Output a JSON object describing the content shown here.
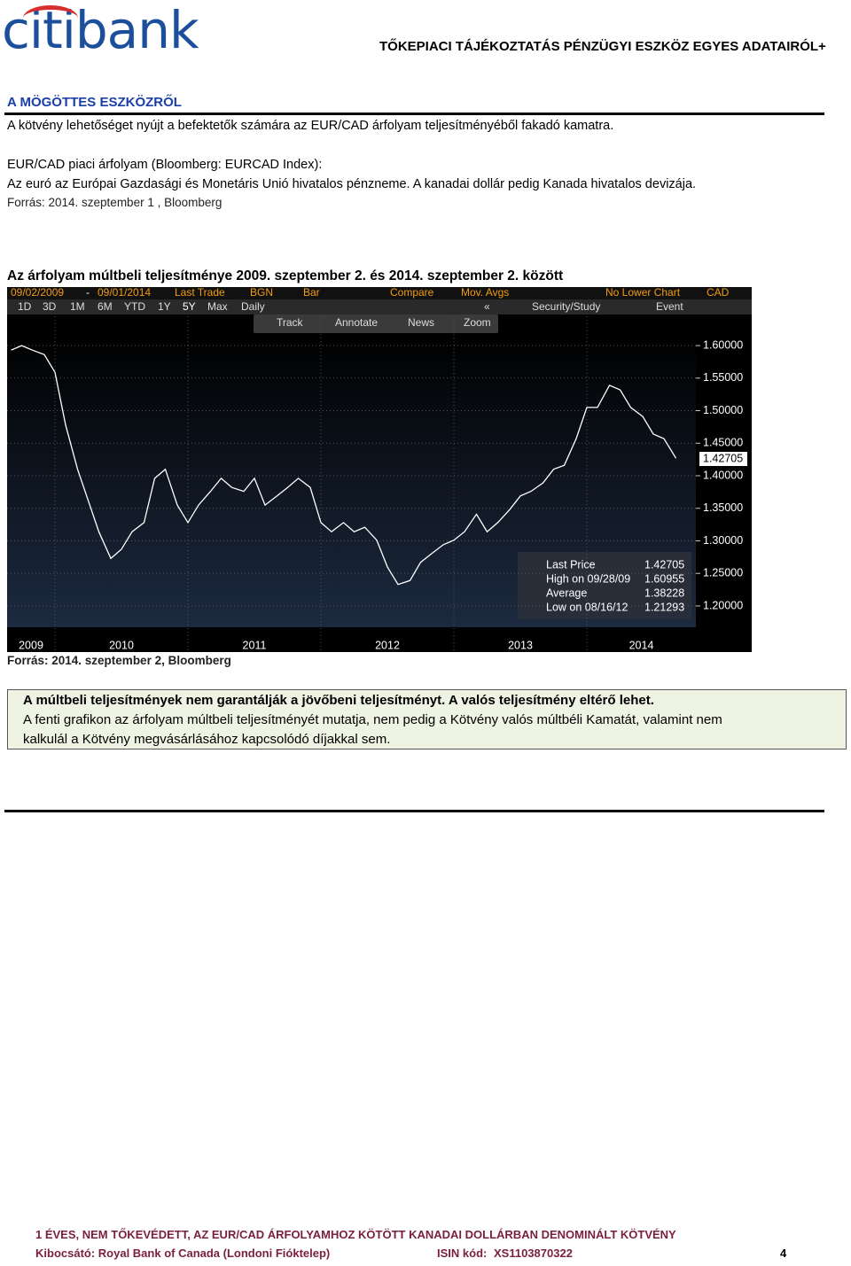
{
  "header": {
    "logo": "citibank",
    "title": "TŐKEPIACI TÁJÉKOZTATÁS PÉNZÜGYI ESZKÖZ EGYES ADATAIRÓL+"
  },
  "section": {
    "heading": "A MÖGÖTTES ESZKÖZRŐL",
    "intro": "A kötvény lehetőséget nyújt a befektetők számára az EUR/CAD árfolyam teljesítményéből fakadó kamatra.",
    "index_title": "EUR/CAD piaci árfolyam (Bloomberg: EURCAD Index):",
    "description": "Az euró az Európai Gazdasági és Monetáris Unió hivatalos pénzneme. A kanadai dollár pedig Kanada hivatalos devizája.",
    "source": "Forrás: 2014. szeptember 1 , Bloomberg"
  },
  "toolbar": {
    "row1": [
      "09/02/2009",
      "-",
      "09/01/2014",
      "Last Trade",
      "BGN",
      "Bar",
      "Compare",
      "Mov. Avgs",
      "No Lower Chart",
      "CAD"
    ],
    "row2": [
      "1D",
      "3D",
      "1M",
      "6M",
      "YTD",
      "1Y",
      "5Y",
      "Max",
      "Daily",
      "«",
      "Security/Study",
      "Event"
    ],
    "row3": [
      "Track",
      "Annotate",
      "News",
      "Zoom"
    ]
  },
  "legend_box": {
    "rows": [
      [
        "Last Price",
        "1.42705"
      ],
      [
        "High on 09/28/09",
        "1.60955"
      ],
      [
        "Average",
        "1.38228"
      ],
      [
        "Low on 08/16/12",
        "1.21293"
      ]
    ],
    "last_price_label": "1.42705"
  },
  "chart_data": {
    "type": "line",
    "title": "Az árfolyam múltbeli teljesítménye 2009. szeptember 2. és 2014. szeptember 2. között",
    "x": [
      2009.67,
      2009.75,
      2009.83,
      2009.92,
      2010.0,
      2010.08,
      2010.17,
      2010.25,
      2010.33,
      2010.42,
      2010.5,
      2010.58,
      2010.67,
      2010.75,
      2010.83,
      2010.92,
      2011.0,
      2011.08,
      2011.17,
      2011.25,
      2011.33,
      2011.42,
      2011.5,
      2011.58,
      2011.67,
      2011.75,
      2011.83,
      2011.92,
      2012.0,
      2012.08,
      2012.17,
      2012.25,
      2012.33,
      2012.42,
      2012.5,
      2012.58,
      2012.67,
      2012.75,
      2012.83,
      2012.92,
      2013.0,
      2013.08,
      2013.17,
      2013.25,
      2013.33,
      2013.42,
      2013.5,
      2013.58,
      2013.67,
      2013.75,
      2013.83,
      2013.92,
      2014.0,
      2014.08,
      2014.17,
      2014.25,
      2014.33,
      2014.42,
      2014.5,
      2014.58,
      2014.67
    ],
    "series": [
      {
        "color": "#ffffff",
        "values": [
          1.593,
          1.6,
          1.593,
          1.586,
          1.559,
          1.478,
          1.41,
          1.362,
          1.314,
          1.273,
          1.287,
          1.314,
          1.328,
          1.396,
          1.41,
          1.355,
          1.328,
          1.355,
          1.376,
          1.396,
          1.382,
          1.376,
          1.396,
          1.355,
          1.369,
          1.382,
          1.396,
          1.382,
          1.328,
          1.314,
          1.328,
          1.314,
          1.321,
          1.301,
          1.26,
          1.233,
          1.239,
          1.267,
          1.28,
          1.294,
          1.301,
          1.314,
          1.341,
          1.314,
          1.328,
          1.348,
          1.369,
          1.376,
          1.389,
          1.41,
          1.416,
          1.457,
          1.505,
          1.505,
          1.539,
          1.532,
          1.505,
          1.491,
          1.464,
          1.457,
          1.427
        ]
      }
    ],
    "xlim": [
      2009.64,
      2014.82
    ],
    "xticks": [
      2009,
      2010,
      2011,
      2012,
      2013,
      2014
    ],
    "ylim": [
      1.17,
      1.645
    ],
    "yticks": [
      {
        "value": 1.2,
        "label": "1.20000"
      },
      {
        "value": 1.25,
        "label": "1.25000"
      },
      {
        "value": 1.3,
        "label": "1.30000"
      },
      {
        "value": 1.35,
        "label": "1.35000"
      },
      {
        "value": 1.4,
        "label": "1.40000"
      },
      {
        "value": 1.45,
        "label": "1.45000"
      },
      {
        "value": 1.5,
        "label": "1.50000"
      },
      {
        "value": 1.55,
        "label": "1.55000"
      },
      {
        "value": 1.6,
        "label": "1.60000"
      }
    ],
    "grid": true,
    "source": "Forrás: 2014. szeptember 2, Bloomberg"
  },
  "disclaimer": {
    "bold": "A múltbeli teljesítmények nem garantálják a jövőbeni teljesítményt. A valós teljesítmény eltérő lehet.",
    "line1": "A fenti grafikon az árfolyam múltbeli teljesítményét mutatja, nem pedig a Kötvény valós múltbéli Kamatát, valamint nem",
    "line2": "kalkulál a Kötvény megvásárlásához kapcsolódó díjakkal sem."
  },
  "footer": {
    "product": "1 ÉVES, NEM TŐKEVÉDETT, AZ EUR/CAD ÁRFOLYAMHOZ KÖTÖTT KANADAI DOLLÁRBAN DENOMINÁLT KÖTVÉNY",
    "issuer": "Kibocsátó: Royal Bank of Canada (Londoni Fióktelep)",
    "isin_label": "ISIN kód:",
    "isin": "XS1103870322",
    "page": "4"
  }
}
